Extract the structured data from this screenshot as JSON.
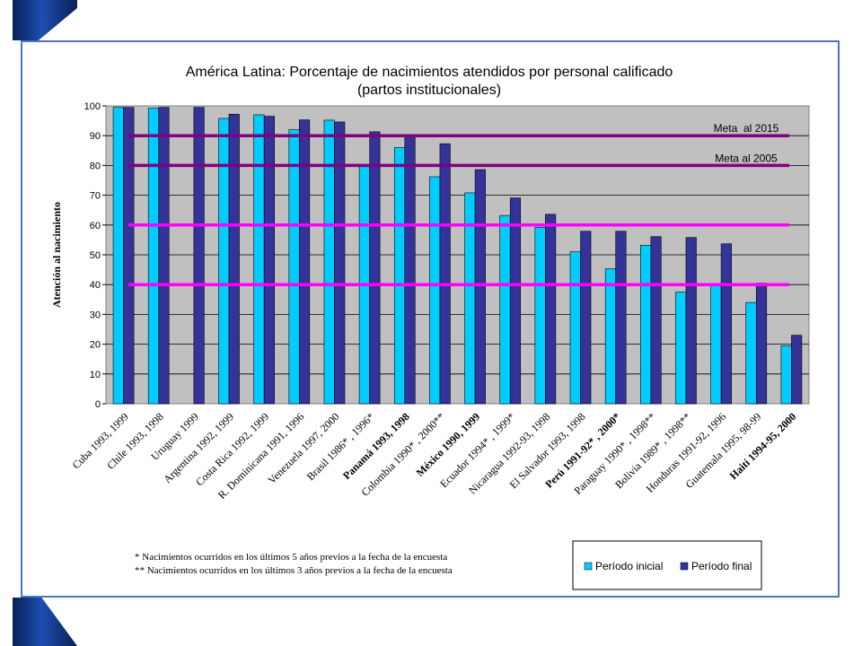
{
  "colors": {
    "initial": "#00ccff",
    "final": "#333399",
    "meta": "#800080",
    "reference": "#ff00ff",
    "frame": "#4a74c8",
    "plot_bg": "#c0c0c0"
  },
  "chart_data": {
    "type": "bar",
    "title": "América Latina: Porcentaje de nacimientos atendidos por personal calificado",
    "subtitle": "(partos institucionales)",
    "xlabel": "",
    "ylabel": "Atención al nacimiento",
    "ylim": [
      0,
      100
    ],
    "yticks": [
      0,
      10,
      20,
      30,
      40,
      50,
      60,
      70,
      80,
      90,
      100
    ],
    "ytick_labels": [
      "0",
      "10",
      "20",
      "30",
      "40",
      "50",
      "60",
      "70",
      "80",
      "90",
      "100"
    ],
    "grid": true,
    "legend_position": "bottom-right",
    "categories": [
      "Cuba 1993, 1999",
      "Chile 1993, 1998",
      "Uruguay 1999",
      "Argentina 1992, 1999",
      "Costa Rica 1992, 1999",
      "R. Dominicana 1991, 1996",
      "Venezuela 1997, 2000",
      "Brasil 1986* , 1996*",
      "Panamá 1993, 1998",
      "Colombia 1990* , 2000**",
      "México 1990, 1999",
      "Ecuador 1994* , 1999*",
      "Nicaragua 1992-93, 1998",
      "El Salvador 1993, 1998",
      "Perú 1991-92* , 2000*",
      "Paraguay 1990* , 1998**",
      "Bolivia 1989* , 1998**",
      "Honduras 1991-92, 1996",
      "Guatemala 1995, 98-99",
      "Haití 1994-95, 2000"
    ],
    "bold_categories": [
      8,
      10,
      14,
      19
    ],
    "series": [
      {
        "name": "Período inicial",
        "values": [
          99.5,
          99.2,
          null,
          95.8,
          97,
          92,
          95.2,
          79.8,
          86,
          76.2,
          70.8,
          63.2,
          59.2,
          51,
          45.3,
          53.2,
          37.5,
          40,
          34,
          19.5
        ]
      },
      {
        "name": "Período final",
        "values": [
          99.5,
          99.5,
          99.5,
          97.2,
          96.5,
          95.3,
          94.6,
          91.3,
          90,
          87.3,
          78.6,
          69.1,
          63.6,
          57.9,
          57.9,
          56.1,
          55.8,
          53.7,
          40.5,
          23
        ]
      }
    ],
    "reference_lines": [
      {
        "value": 90,
        "label": "Meta  al 2015",
        "kind": "meta"
      },
      {
        "value": 80,
        "label": "Meta al 2005",
        "kind": "meta"
      },
      {
        "value": 60,
        "label": "",
        "kind": "reference"
      },
      {
        "value": 40,
        "label": "",
        "kind": "reference"
      }
    ],
    "footnotes": [
      "* Nacimientos ocurridos en los últimos 5 años previos a la fecha de la encuesta",
      "** Nacimientos ocurridos en los últimos 3 años previos a la fecha de la encuesta"
    ]
  }
}
